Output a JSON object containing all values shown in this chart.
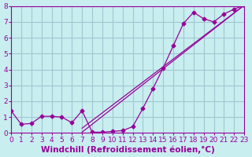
{
  "xlabel": "Windchill (Refroidissement éolien,°C)",
  "background_color": "#c8eef0",
  "line_color": "#990099",
  "grid_color": "#a0c8d0",
  "xlim": [
    0,
    23
  ],
  "ylim": [
    0,
    8
  ],
  "xticks": [
    0,
    1,
    2,
    3,
    4,
    5,
    6,
    7,
    8,
    9,
    10,
    11,
    12,
    13,
    14,
    15,
    16,
    17,
    18,
    19,
    20,
    21,
    22,
    23
  ],
  "yticks": [
    0,
    1,
    2,
    3,
    4,
    5,
    6,
    7,
    8
  ],
  "series1_x": [
    0,
    1,
    2,
    3,
    4,
    5,
    6,
    7,
    8,
    9,
    10,
    11,
    12,
    13,
    14,
    15,
    16,
    17,
    18,
    19,
    20,
    21,
    22,
    23
  ],
  "series1_y": [
    1.4,
    0.55,
    0.6,
    1.05,
    1.05,
    1.0,
    0.65,
    1.4,
    0.05,
    0.05,
    0.1,
    0.15,
    0.4,
    1.55,
    2.8,
    4.1,
    5.5,
    6.9,
    7.6,
    7.2,
    7.0,
    7.5,
    7.8,
    8.05
  ],
  "series2_x": [
    7,
    23
  ],
  "series2_y": [
    0.3,
    8.05
  ],
  "series3_x": [
    7,
    23
  ],
  "series3_y": [
    0.05,
    8.05
  ],
  "font_color": "#990099",
  "tick_fontsize": 6.5,
  "label_fontsize": 7.5,
  "marker_size": 2.5
}
